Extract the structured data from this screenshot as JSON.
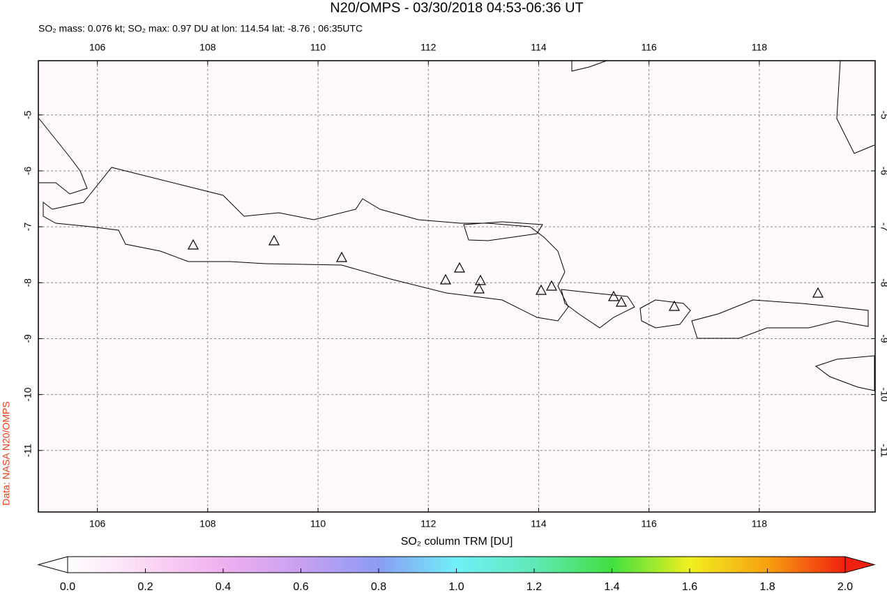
{
  "title": "N20/OMPS - 03/30/2018 04:53-06:36 UT",
  "subtitle": "SO₂ mass: 0.076 kt; SO₂ max: 0.97 DU at lon: 114.54 lat: -8.76 ; 06:35UTC",
  "credit": "Data: NASA N20/OMPS",
  "map": {
    "xlim": [
      104.93,
      120.1
    ],
    "ylim": [
      -12.1,
      -4.03
    ],
    "xticks": [
      106,
      108,
      110,
      112,
      114,
      116,
      118
    ],
    "yticks": [
      -5,
      -6,
      -7,
      -8,
      -9,
      -10,
      -11
    ],
    "grid": true
  },
  "colorbar": {
    "label": "SO₂ column TRM [DU]",
    "lim": [
      0,
      2
    ],
    "ticks": [
      {
        "value": 0,
        "label": "0.0"
      },
      {
        "value": 0.2,
        "label": "0.2"
      },
      {
        "value": 0.4,
        "label": "0.4"
      },
      {
        "value": 0.6,
        "label": "0.6"
      },
      {
        "value": 0.8,
        "label": "0.8"
      },
      {
        "value": 1,
        "label": "1.0"
      },
      {
        "value": 1.2,
        "label": "1.2"
      },
      {
        "value": 1.4,
        "label": "1.4"
      },
      {
        "value": 1.6,
        "label": "1.6"
      },
      {
        "value": 1.8,
        "label": "1.8"
      },
      {
        "value": 2,
        "label": "2.0"
      }
    ]
  }
}
